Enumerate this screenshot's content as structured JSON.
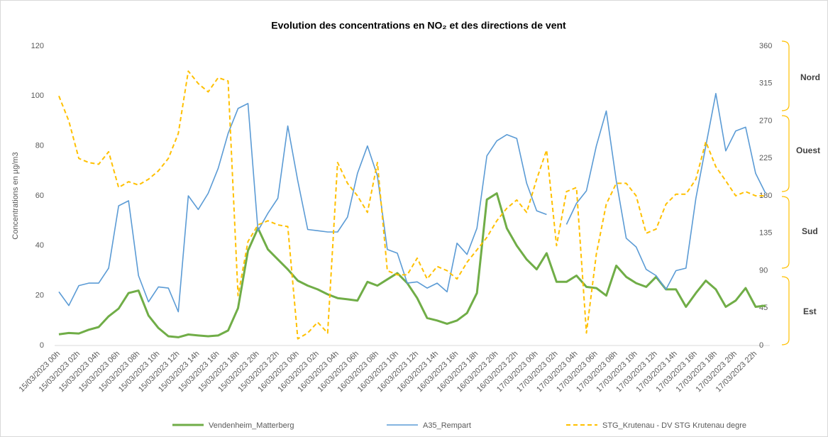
{
  "chart_data": {
    "type": "line",
    "title": "Evolution des concentrations en NO₂ et des directions de vent",
    "y_label": "Concentrations en µg/m3",
    "categories": [
      "15/03/2023 00h",
      null,
      "15/03/2023 02h",
      null,
      "15/03/2023 04h",
      null,
      "15/03/2023 06h",
      null,
      "15/03/2023 08h",
      null,
      "15/03/2023 10h",
      null,
      "15/03/2023 12h",
      null,
      "15/03/2023 14h",
      null,
      "15/03/2023 16h",
      null,
      "15/03/2023 18h",
      null,
      "15/03/2023 20h",
      null,
      "15/03/2023 22h",
      null,
      "16/03/2023 00h",
      null,
      "16/03/2023 02h",
      null,
      "16/03/2023 04h",
      null,
      "16/03/2023 06h",
      null,
      "16/03/2023 08h",
      null,
      "16/03/2023 10h",
      null,
      "16/03/2023 12h",
      null,
      "16/03/2023 14h",
      null,
      "16/03/2023 16h",
      null,
      "16/03/2023 18h",
      null,
      "16/03/2023 20h",
      null,
      "16/03/2023 22h",
      null,
      "17/03/2023 00h",
      null,
      "17/03/2023 02h",
      null,
      "17/03/2023 04h",
      null,
      "17/03/2023 06h",
      null,
      "17/03/2023 08h",
      null,
      "17/03/2023 10h",
      null,
      "17/03/2023 12h",
      null,
      "17/03/2023 14h",
      null,
      "17/03/2023 16h",
      null,
      "17/03/2023 18h",
      null,
      "17/03/2023 20h",
      null,
      "17/03/2023 22h",
      null
    ],
    "series": [
      {
        "name": "Vendenheim_Matterberg",
        "color": "#70ad47",
        "values": [
          4.5,
          5,
          4.8,
          6.3,
          7.4,
          11.7,
          14.8,
          21,
          22,
          12,
          7,
          3.7,
          3.3,
          4.4,
          4,
          3.7,
          4,
          6,
          15,
          38,
          47,
          38.5,
          34.5,
          30.5,
          26,
          24,
          22.5,
          20.5,
          19,
          18.5,
          18,
          25.5,
          24,
          26.5,
          29,
          25,
          19,
          11,
          10,
          8.7,
          10,
          13,
          21,
          58.5,
          61,
          47,
          40,
          34.5,
          30.5,
          37,
          25.5,
          25.5,
          28,
          23.5,
          23,
          20,
          32,
          27.5,
          25,
          23.5,
          27.5,
          22.5,
          22.5,
          15.5,
          21,
          26,
          22.5,
          15.5,
          18,
          23,
          15.5,
          16
        ]
      },
      {
        "name": "A35_Rempart",
        "color": "#5b9bd5",
        "values": [
          21.5,
          16,
          24,
          25,
          25,
          31,
          56,
          58,
          28,
          17.5,
          23.5,
          23,
          13.5,
          60,
          54.5,
          61,
          71,
          85,
          95,
          97,
          46,
          53,
          59,
          88,
          66,
          46.5,
          46,
          45.5,
          45.5,
          51.5,
          69,
          80,
          68,
          38.5,
          37,
          25,
          25.5,
          23,
          25,
          21.5,
          41,
          36.5,
          47,
          76,
          82,
          84.5,
          83,
          65,
          54,
          52.5,
          null,
          48.5,
          57,
          62,
          80,
          94,
          66,
          43,
          39.5,
          30.5,
          28,
          22.5,
          30,
          31,
          59,
          80,
          101,
          78,
          86,
          87.5,
          69,
          61
        ]
      },
      {
        "name": "STG_Krutenau - DV STG Krutenau degre",
        "color": "#ffc000",
        "dashed": true,
        "axis": "y2",
        "values": [
          300,
          270,
          225,
          220,
          218,
          233,
          190,
          197,
          193,
          200,
          210,
          225,
          255,
          330,
          315,
          305,
          322,
          318,
          60,
          125,
          145,
          150,
          145,
          143,
          8,
          15,
          28,
          15,
          220,
          195,
          180,
          160,
          220,
          90,
          85,
          85,
          105,
          80,
          95,
          90,
          80,
          100,
          115,
          130,
          150,
          165,
          175,
          160,
          200,
          235,
          120,
          185,
          190,
          15,
          110,
          170,
          195,
          195,
          180,
          135,
          140,
          170,
          182,
          182,
          200,
          245,
          215,
          198,
          180,
          185,
          180,
          180
        ]
      }
    ],
    "ylim": [
      0,
      120
    ],
    "yticks": [
      0,
      20,
      40,
      60,
      80,
      100,
      120
    ],
    "y2lim": [
      0,
      360
    ],
    "y2ticks": [
      0,
      45,
      90,
      135,
      180,
      225,
      270,
      315,
      360
    ],
    "grid": false,
    "annotations": [
      "Nord",
      "Ouest",
      "Sud",
      "Est"
    ],
    "legend": "bottom"
  }
}
